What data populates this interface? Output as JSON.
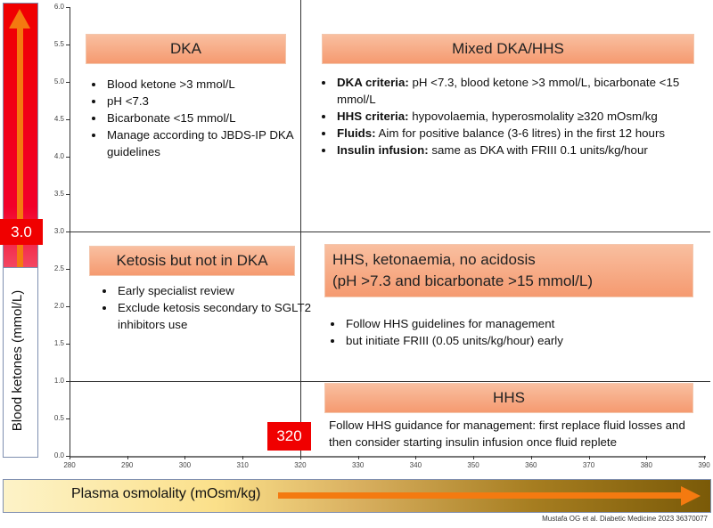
{
  "y_axis": {
    "label": "Blood ketones (mmol/L)",
    "ticks": [
      "6.0",
      "5.5",
      "5.0",
      "4.5",
      "4.0",
      "3.5",
      "3.0",
      "2.5",
      "2.0",
      "1.5",
      "1.0",
      "0.5",
      "0.0"
    ],
    "range": [
      0,
      6
    ],
    "threshold": "3.0",
    "secondary_line": 1.0
  },
  "x_axis": {
    "label": "Plasma osmolality (mOsm/kg)",
    "ticks": [
      "280",
      "290",
      "300",
      "310",
      "320",
      "330",
      "340",
      "350",
      "360",
      "370",
      "380",
      "390"
    ],
    "range": [
      280,
      390
    ],
    "threshold": "320"
  },
  "colors": {
    "header_fill": "#f59a70",
    "threshold_box": "#f00000",
    "arrow": "#f47a10"
  },
  "quadrants": {
    "dka": {
      "title": "DKA",
      "items": [
        "Blood ketone >3 mmol/L",
        "pH <7.3",
        "Bicarbonate <15 mmol/L",
        "Manage according to JBDS-IP DKA guidelines"
      ]
    },
    "mixed": {
      "title": "Mixed DKA/HHS",
      "items": [
        {
          "bold": "DKA criteria:",
          "text": " pH <7.3, blood ketone >3 mmol/L, bicarbonate <15 mmol/L"
        },
        {
          "bold": "HHS criteria:",
          "text": " hypovolaemia, hyperosmolality ≥320 mOsm/kg"
        },
        {
          "bold": "Fluids:",
          "text": " Aim for positive balance (3-6 litres) in the first 12 hours"
        },
        {
          "bold": "Insulin infusion:",
          "text": " same as DKA with FRIII 0.1 units/kg/hour"
        }
      ]
    },
    "ketosis": {
      "title": "Ketosis but not in DKA",
      "items": [
        "Early specialist review",
        "Exclude ketosis secondary to SGLT2 inhibitors use"
      ]
    },
    "hhs_ketonaemia": {
      "title_line1": "HHS, ketonaemia, no acidosis",
      "title_line2": "(pH >7.3 and bicarbonate >15 mmol/L)",
      "items": [
        "Follow HHS guidelines for management",
        "but initiate FRIII (0.05 units/kg/hour) early"
      ]
    },
    "hhs": {
      "title": "HHS",
      "text": "Follow HHS guidance for management: first replace fluid losses and then consider starting insulin infusion once fluid replete"
    }
  },
  "citation": "Mustafa OG et al. Diabetic Medicine 2023 36370077"
}
